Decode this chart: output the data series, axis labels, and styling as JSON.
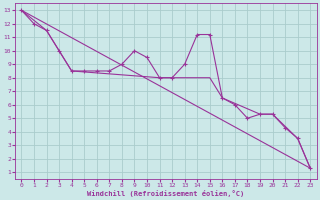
{
  "xlabel": "Windchill (Refroidissement éolien,°C)",
  "background_color": "#cce8e8",
  "grid_color": "#aacccc",
  "line_color": "#993399",
  "xlim": [
    -0.5,
    23.5
  ],
  "ylim": [
    0.5,
    13.5
  ],
  "xticks": [
    0,
    1,
    2,
    3,
    4,
    5,
    6,
    7,
    8,
    9,
    10,
    11,
    12,
    13,
    14,
    15,
    16,
    17,
    18,
    19,
    20,
    21,
    22,
    23
  ],
  "yticks": [
    1,
    2,
    3,
    4,
    5,
    6,
    7,
    8,
    9,
    10,
    11,
    12,
    13
  ],
  "series1_x": [
    0,
    1,
    2,
    3,
    4,
    5,
    6,
    7,
    8,
    9,
    10,
    11,
    12,
    13,
    14,
    15,
    16,
    17,
    18,
    19,
    20,
    21,
    22,
    23
  ],
  "series1_y": [
    13,
    12,
    11.5,
    10,
    8.5,
    8.5,
    8.5,
    8.5,
    9.0,
    10.0,
    9.5,
    8.0,
    8.0,
    9.0,
    11.2,
    11.2,
    6.5,
    6.0,
    5.0,
    5.3,
    5.3,
    4.3,
    3.5,
    1.3
  ],
  "series2_x": [
    0,
    2,
    4,
    11,
    14,
    15,
    16,
    19,
    20,
    22,
    23
  ],
  "series2_y": [
    13,
    11.5,
    8.5,
    8.0,
    8.0,
    8.0,
    6.5,
    5.3,
    5.3,
    3.5,
    1.3
  ],
  "series3_x": [
    0,
    23
  ],
  "series3_y": [
    13,
    1.3
  ]
}
